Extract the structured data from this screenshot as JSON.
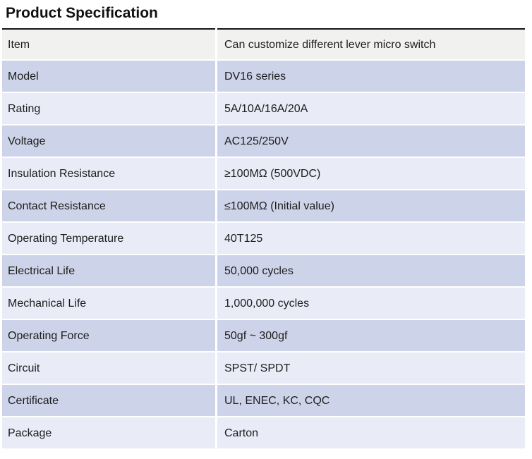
{
  "title": "Product Specification",
  "colors": {
    "top_rule": "#141414",
    "header_row_bg": "#f1f1f0",
    "band_dark_bg": "#cdd3e8",
    "band_light_bg": "#e9ebf7",
    "text": "#1d1d1d",
    "page_bg": "#ffffff"
  },
  "table": {
    "rows": [
      {
        "label": "Item",
        "value": "Can customize different lever micro switch"
      },
      {
        "label": "Model",
        "value": "DV16 series"
      },
      {
        "label": "Rating",
        "value": "5A/10A/16A/20A"
      },
      {
        "label": "Voltage",
        "value": "AC125/250V"
      },
      {
        "label": "Insulation Resistance",
        "value": "≥100MΩ (500VDC)"
      },
      {
        "label": "Contact Resistance",
        "value": "≤100MΩ (Initial value)"
      },
      {
        "label": "Operating Temperature",
        "value": "40T125"
      },
      {
        "label": "Electrical Life",
        "value": "50,000 cycles"
      },
      {
        "label": "Mechanical Life",
        "value": "1,000,000 cycles"
      },
      {
        "label": "Operating Force",
        "value": "50gf ~ 300gf"
      },
      {
        "label": "Circuit",
        "value": "SPST/ SPDT"
      },
      {
        "label": "Certificate",
        "value": "UL, ENEC, KC, CQC"
      },
      {
        "label": "Package",
        "value": "Carton"
      }
    ]
  }
}
